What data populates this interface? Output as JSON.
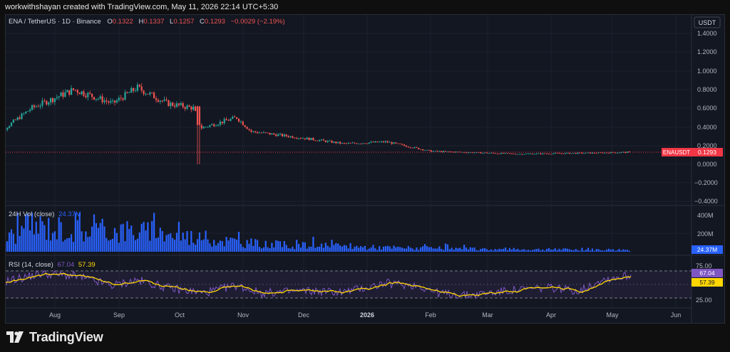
{
  "topbar": {
    "text": "workwithshayan created with TradingView.com, May 11, 2026 22:14 UTC+5:30"
  },
  "symbol": {
    "title": "ENA / TetherUS · 1D · Binance",
    "o_label": "O",
    "o_value": "0.1322",
    "h_label": "H",
    "h_value": "0.1337",
    "l_label": "L",
    "l_value": "0.1257",
    "c_label": "C",
    "c_value": "0.1293",
    "change": "−0.0029 (−2.19%)"
  },
  "currency_button": "USDT",
  "price_axis": {
    "ticks": [
      "1.4000",
      "1.2000",
      "1.0000",
      "0.8000",
      "0.6000",
      "0.4000",
      "0.2000",
      "0.0000",
      "−0.2000",
      "−0.4000"
    ],
    "last_price_tag": {
      "label": "ENAUSDT",
      "value": "0.1293"
    }
  },
  "volume": {
    "title": "24H Vol (close)",
    "value": "24.37M",
    "ticks": [
      "400M",
      "200M"
    ],
    "tag": "24.37M"
  },
  "rsi": {
    "title": "RSI (14, close)",
    "value1": "67.04",
    "value2": "57.39",
    "ticks": [
      "75.00",
      "25.00"
    ],
    "tag1": "67.04",
    "tag2": "57.39"
  },
  "time_axis": [
    "Aug",
    "Sep",
    "Oct",
    "Nov",
    "Dec",
    "2026",
    "Feb",
    "Mar",
    "Apr",
    "May",
    "Jun"
  ],
  "brand": {
    "name": "TradingView"
  },
  "colors": {
    "up": "#26a69a",
    "down": "#ef5350",
    "volume": "#2962ff",
    "rsi_line": "#7e57c2",
    "rsi_ma": "#ffd600",
    "background": "#131722",
    "last_price": "#f23645"
  },
  "chart_data": [
    {
      "type": "candlestick",
      "title": "ENA / TetherUS · 1D · Binance",
      "x_range": [
        "2025-07",
        "2026-06"
      ],
      "ylim": [
        -0.4,
        1.4
      ],
      "key_points": [
        {
          "x": "2025-07-01",
          "y": 0.27
        },
        {
          "x": "2025-07-20",
          "y": 0.6
        },
        {
          "x": "2025-08-10",
          "y": 0.8
        },
        {
          "x": "2025-08-28",
          "y": 0.65
        },
        {
          "x": "2025-09-10",
          "y": 0.82
        },
        {
          "x": "2025-09-25",
          "y": 0.65
        },
        {
          "x": "2025-10-08",
          "y": 0.6
        },
        {
          "x": "2025-10-10",
          "y": 0.38
        },
        {
          "x": "2025-10-28",
          "y": 0.5
        },
        {
          "x": "2025-11-05",
          "y": 0.35
        },
        {
          "x": "2025-12-01",
          "y": 0.28
        },
        {
          "x": "2025-12-20",
          "y": 0.22
        },
        {
          "x": "2026-01-10",
          "y": 0.24
        },
        {
          "x": "2026-02-01",
          "y": 0.14
        },
        {
          "x": "2026-03-15",
          "y": 0.11
        },
        {
          "x": "2026-04-20",
          "y": 0.12
        },
        {
          "x": "2026-05-10",
          "y": 0.1293
        }
      ],
      "last": 0.1293
    },
    {
      "type": "bar",
      "title": "24H Vol (close)",
      "ylim": [
        0,
        450
      ],
      "unit": "M",
      "profile": [
        {
          "x": "2025-07-01",
          "y": 60
        },
        {
          "x": "2025-07-20",
          "y": 320
        },
        {
          "x": "2025-08-10",
          "y": 260
        },
        {
          "x": "2025-09-10",
          "y": 250
        },
        {
          "x": "2025-10-10",
          "y": 170
        },
        {
          "x": "2025-11-10",
          "y": 90
        },
        {
          "x": "2026-01-01",
          "y": 55
        },
        {
          "x": "2026-03-01",
          "y": 30
        },
        {
          "x": "2026-05-10",
          "y": 24.37
        }
      ],
      "last": 24.37
    },
    {
      "type": "line",
      "title": "RSI (14, close)",
      "ylim": [
        15,
        90
      ],
      "series": [
        {
          "name": "RSI",
          "last": 67.04
        },
        {
          "name": "MA",
          "last": 57.39
        }
      ],
      "levels": [
        75,
        25
      ]
    }
  ]
}
